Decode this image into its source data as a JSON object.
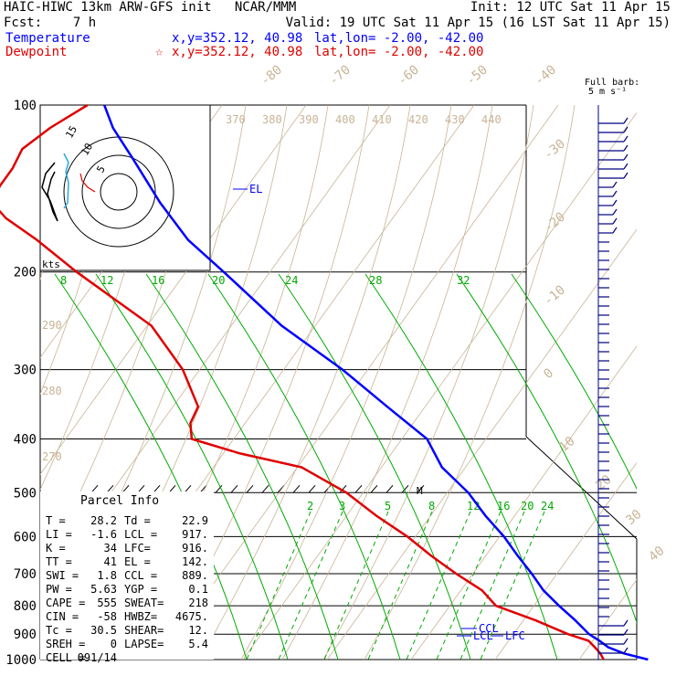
{
  "header": {
    "model_line": "HAIC-HIWC 13km ARW-GFS init   NCAR/MMM",
    "init_line": "Init: 12 UTC Sat 11 Apr 15",
    "fcst_line": "Fcst:    7 h",
    "valid_line": "Valid: 19 UTC Sat 11 Apr 15 (16 LST Sat 11 Apr 15)",
    "temperature_label": "Temperature",
    "temperature_xy": "x,y=352.12, 40.98",
    "temperature_latlon": "lat,lon= -2.00, -42.00",
    "dewpoint_label": "Dewpoint",
    "dewpoint_xy": "x,y=352.12, 40.98",
    "dewpoint_marker": "☆",
    "dewpoint_latlon": "lat,lon= -2.00, -42.00",
    "barb_key_1": "Full barb:",
    "barb_key_2": "5 m s⁻¹"
  },
  "colors": {
    "temperature": "#0000ff",
    "dewpoint": "#e00000",
    "dry_adiabat": "#c8b496",
    "moist_adiabat": "#00aa00",
    "isotherm": "#c8b496",
    "barb": "#000080"
  },
  "chart_data": {
    "type": "skew-t",
    "pressure_levels": [
      100,
      200,
      300,
      400,
      500,
      600,
      700,
      800,
      900,
      1000
    ],
    "ylim": [
      1000,
      100
    ],
    "isotherm_labels": [
      -80,
      -70,
      -60,
      -50,
      -40,
      -30,
      -20,
      -10,
      0,
      10,
      20,
      30,
      40
    ],
    "theta_labels": [
      370,
      380,
      390,
      400,
      410,
      420,
      430,
      440
    ],
    "theta_left_labels": [
      290,
      280,
      270
    ],
    "mixing_ratio_labels": [
      2,
      3,
      5,
      8,
      12,
      16,
      20,
      24
    ],
    "theta_e_labels": [
      8,
      12,
      16,
      20,
      24,
      28,
      32
    ],
    "series": [
      {
        "name": "Temperature",
        "p": [
          1000,
          975,
          950,
          925,
          900,
          850,
          800,
          750,
          700,
          650,
          600,
          550,
          500,
          450,
          400,
          350,
          300,
          250,
          200,
          175,
          150,
          125,
          110,
          100
        ],
        "t": [
          28.2,
          24.8,
          22.4,
          20.8,
          19.0,
          16.2,
          13.0,
          9.8,
          7.0,
          3.8,
          0.5,
          -3.5,
          -7.5,
          -12.8,
          -17.0,
          -24.5,
          -33.0,
          -44.0,
          -55.5,
          -62.5,
          -69.0,
          -76.0,
          -81.0,
          -84.0
        ]
      },
      {
        "name": "Dewpoint",
        "p": [
          1000,
          975,
          950,
          925,
          900,
          850,
          800,
          750,
          700,
          650,
          600,
          550,
          500,
          450,
          425,
          400,
          375,
          350,
          300,
          250,
          200,
          175,
          160,
          150,
          140,
          130,
          120,
          110,
          100
        ],
        "t": [
          22.9,
          22.0,
          20.8,
          19.5,
          16.5,
          11.5,
          5.5,
          2.5,
          -2.0,
          -6.5,
          -11.0,
          -16.5,
          -22.0,
          -29.5,
          -38.0,
          -45.0,
          -46.5,
          -47.0,
          -52.0,
          -59.5,
          -73.0,
          -80.5,
          -86.0,
          -89.0,
          -89.5,
          -89.5,
          -90.0,
          -88.5,
          -86.0
        ]
      }
    ],
    "annotations": {
      "el": "EL",
      "ccl": "CCL",
      "lcl": "LCL",
      "lfc": "LFC",
      "mark_500": "M"
    },
    "hodograph": {
      "rings": [
        5,
        10,
        15
      ],
      "units": "kts"
    }
  },
  "parcel_info": {
    "title": "Parcel Info",
    "rows": [
      [
        "T  =",
        "28.2",
        "Td =",
        "22.9"
      ],
      [
        "LI =",
        "-1.6",
        "LCL =",
        "917."
      ],
      [
        "K  =",
        "34",
        "LFC=",
        "916."
      ],
      [
        "TT =",
        "41",
        "EL =",
        "142."
      ],
      [
        "SWI =",
        "1.8",
        "CCL =",
        "889."
      ],
      [
        "PW =",
        "5.63",
        "YGP =",
        "0.1"
      ],
      [
        "CAPE =",
        "555",
        "SWEAT=",
        "218"
      ],
      [
        "CIN =",
        "-58",
        "HWBZ=",
        "4675."
      ],
      [
        "Tc =",
        "30.5",
        "SHEAR=",
        "12."
      ],
      [
        "SREH =",
        "0",
        "LAPSE=",
        "5.4"
      ],
      [
        "CELL =",
        "091/14",
        "",
        ""
      ]
    ]
  }
}
